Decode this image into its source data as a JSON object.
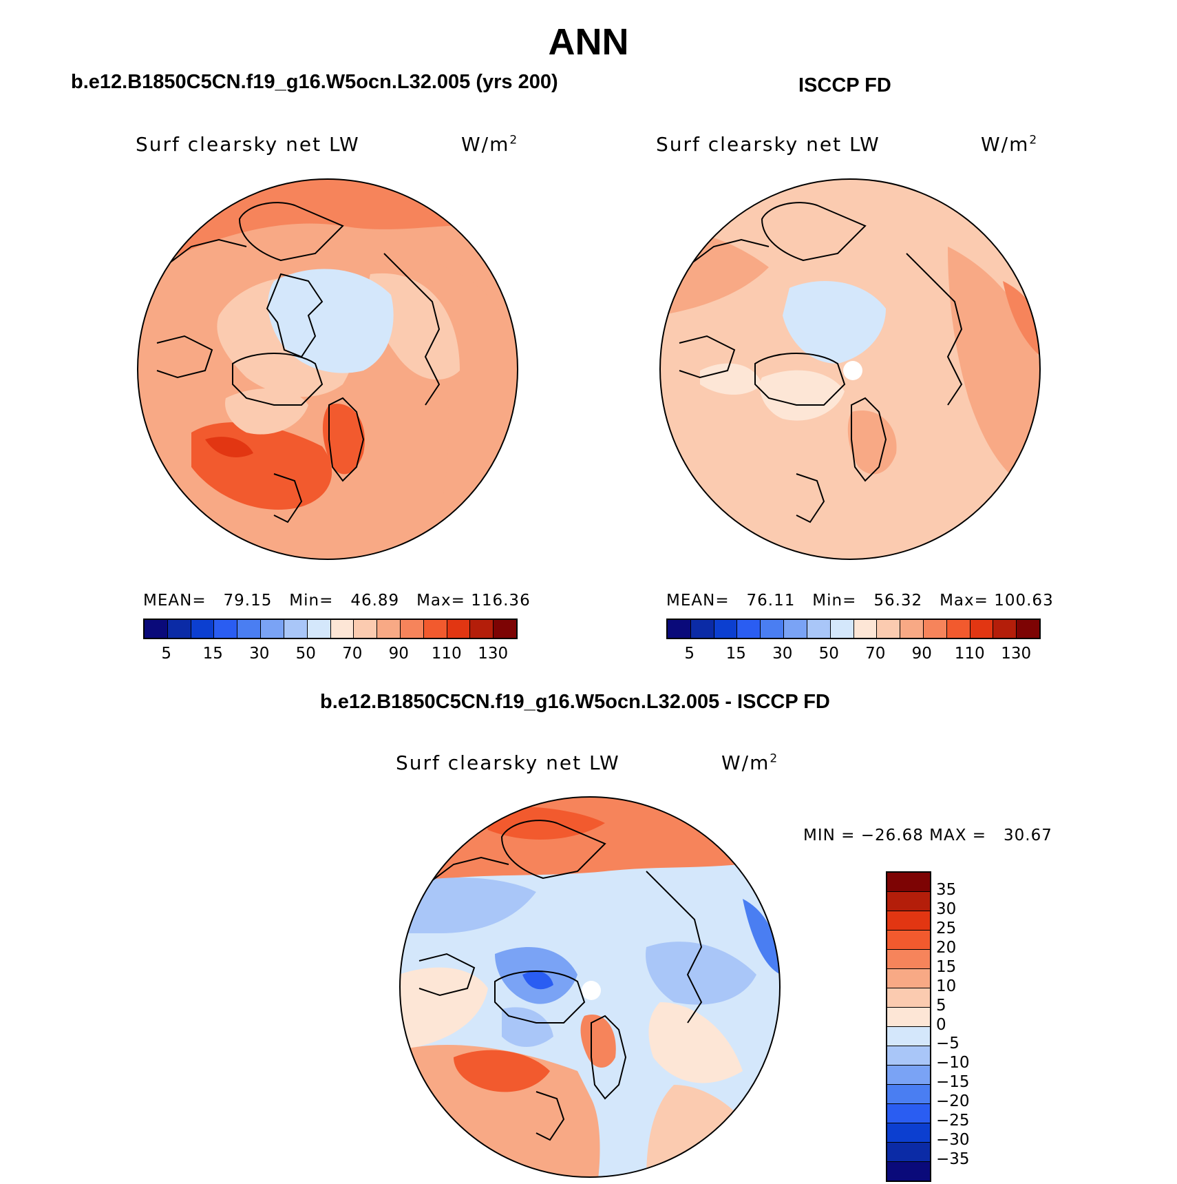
{
  "page_title": "ANN",
  "panel_a": {
    "title": "b.e12.B1850C5CN.f19_g16.W5ocn.L32.005 (yrs 200)",
    "variable": "Surf clearsky net LW",
    "units": "W/m",
    "units_exp": "2",
    "stats": "MEAN=   79.15   Min=   46.89   Max= 116.36"
  },
  "panel_b": {
    "title": "ISCCP FD",
    "variable": "Surf clearsky net LW",
    "units": "W/m",
    "units_exp": "2",
    "stats": "MEAN=   76.11   Min=   56.32   Max= 100.63"
  },
  "panel_c": {
    "title": "b.e12.B1850C5CN.f19_g16.W5ocn.L32.005 - ISCCP FD",
    "variable": "Surf clearsky net LW",
    "units": "W/m",
    "units_exp": "2",
    "stats": "MIN = −26.68 MAX =   30.67"
  },
  "horizontal_colorbar": {
    "colors": [
      "#0a0a7a",
      "#0b2ba6",
      "#0c3fd0",
      "#2a5df2",
      "#4a7ef2",
      "#7aa3f5",
      "#a9c6f8",
      "#d4e7fb",
      "#fde6d6",
      "#fbcbb0",
      "#f8a985",
      "#f6845b",
      "#f25a2e",
      "#e23612",
      "#b41e0a",
      "#7d0404"
    ],
    "ticks": [
      "5",
      "15",
      "30",
      "50",
      "70",
      "90",
      "110",
      "130"
    ]
  },
  "vertical_colorbar": {
    "colors": [
      "#7d0404",
      "#b41e0a",
      "#e23612",
      "#f25a2e",
      "#f6845b",
      "#f8a985",
      "#fbcbb0",
      "#fde6d6",
      "#d4e7fb",
      "#a9c6f8",
      "#7aa3f5",
      "#4a7ef2",
      "#2a5df2",
      "#0c3fd0",
      "#0b2ba6",
      "#0a0a7a"
    ],
    "ticks": [
      "35",
      "30",
      "25",
      "20",
      "15",
      "10",
      "5",
      "0",
      "−5",
      "−10",
      "−15",
      "−20",
      "−25",
      "−30",
      "−35"
    ]
  }
}
